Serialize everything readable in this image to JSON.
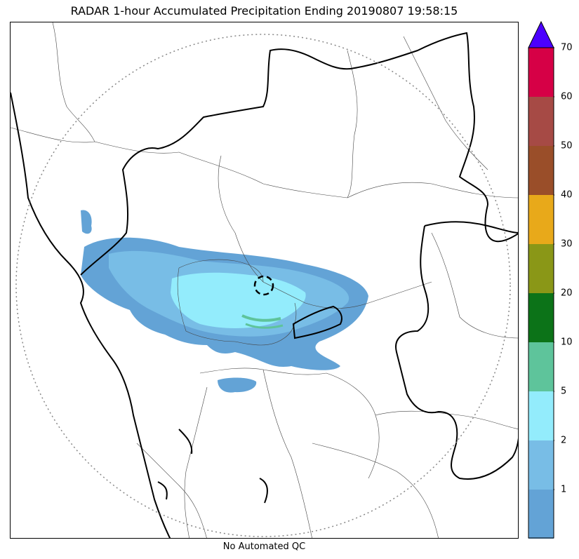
{
  "title": "RADAR 1-hour Accumulated Precipitation Ending 20190807 19:58:15",
  "footer_note": "No Automated QC",
  "colorbar": {
    "extend_color": "#4b00ff",
    "segments": [
      {
        "color": "#63a3d6"
      },
      {
        "color": "#78bde6"
      },
      {
        "color": "#93ecfc"
      },
      {
        "color": "#5ec49b"
      },
      {
        "color": "#0c7318"
      },
      {
        "color": "#8a9717"
      },
      {
        "color": "#e8a91a"
      },
      {
        "color": "#9a4e29"
      },
      {
        "color": "#a64a45"
      },
      {
        "color": "#d60046"
      }
    ],
    "tick_labels": [
      "1",
      "2",
      "5",
      "10",
      "20",
      "30",
      "40",
      "50",
      "60",
      "70"
    ]
  },
  "map": {
    "land_background": "#ffffff",
    "precip_palette": {
      "light": "#63a3d6",
      "moderate": "#78bde6",
      "heavy": "#93ecfc",
      "very_heavy": "#5ec49b"
    },
    "range_ring": "dotted",
    "radar_site_marker": "dashed-circle"
  }
}
